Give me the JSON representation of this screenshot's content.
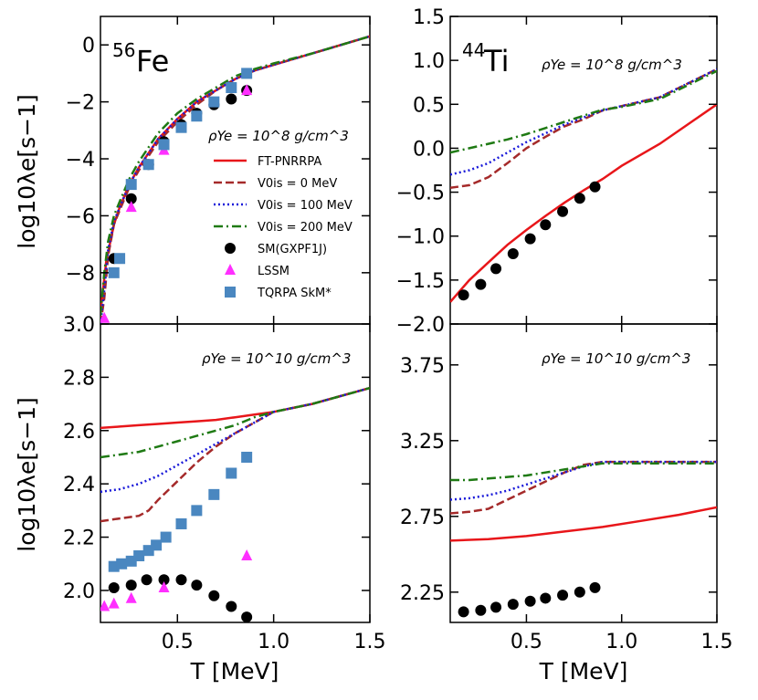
{
  "axes": {
    "shared_ylabel": "log10λe[s−1]",
    "shared_xlabel": "T [MeV]",
    "x_ticks": [
      "0.5",
      "1.0",
      "1.5"
    ]
  },
  "legend": {
    "rho_label": "ρYe = 10^8 g/cm^3",
    "entries": [
      {
        "label": "FT-PNRRPA",
        "style": "solid",
        "color": "#e8161a"
      },
      {
        "label": "V0is = 0 MeV",
        "style": "dashed",
        "color": "#a52a2a"
      },
      {
        "label": "V0is = 100 MeV",
        "style": "dotted",
        "color": "#1a1ad9"
      },
      {
        "label": "V0is = 200 MeV",
        "style": "dashdot",
        "color": "#1f7a14"
      },
      {
        "label": "SM(GXPF1J)",
        "style": "circle",
        "color": "#000000"
      },
      {
        "label": "LSSM",
        "style": "triangle",
        "color": "#ff2fff"
      },
      {
        "label": "TQRPA SkM*",
        "style": "square",
        "color": "#4a87c0"
      }
    ]
  },
  "chart_data": [
    {
      "panel": "top-left",
      "type": "line",
      "nucleus_mass": "56",
      "nucleus": "Fe",
      "density_label": "",
      "xlim": [
        0.1,
        1.5
      ],
      "ylim": [
        -9.8,
        1.0
      ],
      "y_ticks": [
        "0",
        "−2",
        "−4",
        "−6",
        "−8"
      ],
      "y_tick_values": [
        0,
        -2,
        -4,
        -6,
        -8
      ],
      "series": [
        {
          "name": "FT-PNRRPA",
          "style": "solid",
          "color": "#e8161a",
          "x": [
            0.1,
            0.13,
            0.17,
            0.2,
            0.25,
            0.3,
            0.4,
            0.5,
            0.6,
            0.7,
            0.8,
            0.9,
            1.0,
            1.2,
            1.5
          ],
          "y": [
            -9.4,
            -7.6,
            -6.3,
            -5.7,
            -4.9,
            -4.3,
            -3.3,
            -2.6,
            -2.0,
            -1.6,
            -1.2,
            -0.9,
            -0.7,
            -0.3,
            0.3
          ]
        },
        {
          "name": "V0is = 0 MeV",
          "style": "dashed",
          "color": "#a52a2a",
          "x": [
            0.1,
            0.12,
            0.14,
            0.17,
            0.2,
            0.25,
            0.3,
            0.4,
            0.5,
            0.6,
            0.7,
            0.8,
            0.9,
            1.0,
            1.2,
            1.5
          ],
          "y": [
            -9.8,
            -8.9,
            -7.4,
            -6.3,
            -5.8,
            -5.0,
            -4.4,
            -3.4,
            -2.7,
            -2.1,
            -1.6,
            -1.2,
            -0.9,
            -0.7,
            -0.3,
            0.3
          ]
        },
        {
          "name": "V0is = 100 MeV",
          "style": "dotted",
          "color": "#1a1ad9",
          "x": [
            0.1,
            0.12,
            0.14,
            0.17,
            0.2,
            0.25,
            0.3,
            0.4,
            0.5,
            0.6,
            0.7,
            0.8,
            0.9,
            1.0,
            1.2,
            1.5
          ],
          "y": [
            -9.8,
            -8.6,
            -7.2,
            -6.2,
            -5.7,
            -4.9,
            -4.3,
            -3.3,
            -2.6,
            -2.0,
            -1.6,
            -1.2,
            -0.9,
            -0.7,
            -0.3,
            0.3
          ]
        },
        {
          "name": "V0is = 200 MeV",
          "style": "dashdot",
          "color": "#1f7a14",
          "x": [
            0.1,
            0.12,
            0.14,
            0.17,
            0.2,
            0.25,
            0.3,
            0.4,
            0.5,
            0.6,
            0.7,
            0.8,
            0.9,
            1.0,
            1.2,
            1.5
          ],
          "y": [
            -9.5,
            -8.0,
            -6.9,
            -6.0,
            -5.5,
            -4.7,
            -4.1,
            -3.1,
            -2.4,
            -1.9,
            -1.5,
            -1.1,
            -0.85,
            -0.65,
            -0.3,
            0.3
          ]
        },
        {
          "name": "SM(GXPF1J)",
          "style": "circle",
          "color": "#000000",
          "x": [
            0.17,
            0.26,
            0.35,
            0.43,
            0.52,
            0.6,
            0.69,
            0.78,
            0.86
          ],
          "y": [
            -7.5,
            -5.4,
            -4.2,
            -3.4,
            -2.8,
            -2.4,
            -2.1,
            -1.9,
            -1.6
          ]
        },
        {
          "name": "LSSM",
          "style": "triangle",
          "color": "#ff2fff",
          "x": [
            0.12,
            0.26,
            0.43,
            0.86
          ],
          "y": [
            -9.6,
            -5.7,
            -3.7,
            -1.6
          ]
        },
        {
          "name": "TQRPA SkM*",
          "style": "square",
          "color": "#4a87c0",
          "x": [
            0.17,
            0.2,
            0.26,
            0.35,
            0.43,
            0.52,
            0.6,
            0.69,
            0.78,
            0.86
          ],
          "y": [
            -8.0,
            -7.5,
            -4.9,
            -4.2,
            -3.5,
            -2.9,
            -2.5,
            -2.0,
            -1.5,
            -1.0
          ]
        }
      ]
    },
    {
      "panel": "top-right",
      "type": "line",
      "nucleus_mass": "44",
      "nucleus": "Ti",
      "density_label": "ρYe = 10^8 g/cm^3",
      "xlim": [
        0.1,
        1.5
      ],
      "ylim": [
        -2.0,
        1.5
      ],
      "y_ticks": [
        "1.5",
        "1.0",
        "0.5",
        "0.0",
        "−0.5",
        "−1.0",
        "−1.5",
        "−2.0"
      ],
      "y_tick_values": [
        1.5,
        1.0,
        0.5,
        0.0,
        -0.5,
        -1.0,
        -1.5,
        -2.0
      ],
      "series": [
        {
          "name": "FT-PNRRPA",
          "style": "solid",
          "color": "#e8161a",
          "x": [
            0.1,
            0.2,
            0.3,
            0.4,
            0.5,
            0.6,
            0.7,
            0.8,
            0.9,
            1.0,
            1.2,
            1.5
          ],
          "y": [
            -1.75,
            -1.5,
            -1.3,
            -1.1,
            -0.93,
            -0.77,
            -0.62,
            -0.48,
            -0.35,
            -0.2,
            0.05,
            0.5
          ]
        },
        {
          "name": "V0is = 0 MeV",
          "style": "dashed",
          "color": "#a52a2a",
          "x": [
            0.1,
            0.2,
            0.3,
            0.4,
            0.5,
            0.6,
            0.7,
            0.8,
            0.9,
            1.0,
            1.2,
            1.5
          ],
          "y": [
            -0.45,
            -0.42,
            -0.33,
            -0.17,
            0.0,
            0.13,
            0.25,
            0.33,
            0.43,
            0.48,
            0.58,
            0.9
          ]
        },
        {
          "name": "V0is = 100 MeV",
          "style": "dotted",
          "color": "#1a1ad9",
          "x": [
            0.1,
            0.2,
            0.3,
            0.4,
            0.5,
            0.6,
            0.7,
            0.8,
            0.9,
            1.0,
            1.2,
            1.5
          ],
          "y": [
            -0.3,
            -0.25,
            -0.17,
            -0.05,
            0.07,
            0.17,
            0.27,
            0.35,
            0.43,
            0.48,
            0.58,
            0.9
          ]
        },
        {
          "name": "V0is = 200 MeV",
          "style": "dashdot",
          "color": "#1f7a14",
          "x": [
            0.1,
            0.2,
            0.3,
            0.4,
            0.5,
            0.6,
            0.7,
            0.8,
            0.9,
            1.0,
            1.2,
            1.5
          ],
          "y": [
            -0.05,
            0.0,
            0.05,
            0.1,
            0.16,
            0.23,
            0.3,
            0.37,
            0.44,
            0.47,
            0.56,
            0.88
          ]
        },
        {
          "name": "SM(GXPF1J)",
          "style": "circle",
          "color": "#000000",
          "x": [
            0.17,
            0.26,
            0.34,
            0.43,
            0.52,
            0.6,
            0.69,
            0.78,
            0.86
          ],
          "y": [
            -1.67,
            -1.55,
            -1.37,
            -1.2,
            -1.03,
            -0.87,
            -0.72,
            -0.57,
            -0.44
          ]
        }
      ]
    },
    {
      "panel": "bottom-left",
      "type": "line",
      "nucleus_mass": "",
      "nucleus": "",
      "density_label": "ρYe = 10^10 g/cm^3",
      "xlim": [
        0.1,
        1.5
      ],
      "ylim": [
        1.88,
        3.0
      ],
      "y_ticks": [
        "3.0",
        "2.8",
        "2.6",
        "2.4",
        "2.2",
        "2.0"
      ],
      "y_tick_values": [
        3.0,
        2.8,
        2.6,
        2.4,
        2.2,
        2.0
      ],
      "series": [
        {
          "name": "FT-PNRRPA",
          "style": "solid",
          "color": "#e8161a",
          "x": [
            0.1,
            0.2,
            0.3,
            0.4,
            0.5,
            0.6,
            0.7,
            0.8,
            0.9,
            1.0,
            1.2,
            1.5
          ],
          "y": [
            2.61,
            2.615,
            2.62,
            2.625,
            2.63,
            2.635,
            2.64,
            2.65,
            2.66,
            2.67,
            2.7,
            2.76
          ]
        },
        {
          "name": "V0is = 0 MeV",
          "style": "dashed",
          "color": "#a52a2a",
          "x": [
            0.1,
            0.2,
            0.3,
            0.35,
            0.4,
            0.5,
            0.6,
            0.7,
            0.8,
            0.9,
            1.0,
            1.2,
            1.5
          ],
          "y": [
            2.26,
            2.27,
            2.28,
            2.3,
            2.34,
            2.41,
            2.48,
            2.54,
            2.59,
            2.63,
            2.67,
            2.7,
            2.76
          ]
        },
        {
          "name": "V0is = 100 MeV",
          "style": "dotted",
          "color": "#1a1ad9",
          "x": [
            0.1,
            0.2,
            0.3,
            0.4,
            0.5,
            0.6,
            0.7,
            0.8,
            0.9,
            1.0,
            1.2,
            1.5
          ],
          "y": [
            2.37,
            2.38,
            2.4,
            2.43,
            2.47,
            2.51,
            2.55,
            2.59,
            2.63,
            2.67,
            2.7,
            2.76
          ]
        },
        {
          "name": "V0is = 200 MeV",
          "style": "dashdot",
          "color": "#1f7a14",
          "x": [
            0.1,
            0.2,
            0.3,
            0.4,
            0.5,
            0.6,
            0.7,
            0.8,
            0.9,
            1.0,
            1.2,
            1.5
          ],
          "y": [
            2.5,
            2.51,
            2.52,
            2.54,
            2.56,
            2.58,
            2.6,
            2.62,
            2.65,
            2.67,
            2.7,
            2.76
          ]
        },
        {
          "name": "SM(GXPF1J)",
          "style": "circle",
          "color": "#000000",
          "x": [
            0.17,
            0.26,
            0.34,
            0.43,
            0.52,
            0.6,
            0.69,
            0.78,
            0.86
          ],
          "y": [
            2.01,
            2.02,
            2.04,
            2.04,
            2.04,
            2.02,
            1.98,
            1.94,
            1.9
          ]
        },
        {
          "name": "LSSM",
          "style": "triangle",
          "color": "#ff2fff",
          "x": [
            0.12,
            0.17,
            0.26,
            0.43,
            0.86
          ],
          "y": [
            1.94,
            1.95,
            1.97,
            2.01,
            2.13
          ]
        },
        {
          "name": "TQRPA SkM*",
          "style": "square",
          "color": "#4a87c0",
          "x": [
            0.17,
            0.21,
            0.26,
            0.3,
            0.35,
            0.39,
            0.44,
            0.52,
            0.6,
            0.69,
            0.78,
            0.86
          ],
          "y": [
            2.09,
            2.1,
            2.11,
            2.13,
            2.15,
            2.17,
            2.2,
            2.25,
            2.3,
            2.36,
            2.44,
            2.5
          ]
        }
      ]
    },
    {
      "panel": "bottom-right",
      "type": "line",
      "nucleus_mass": "",
      "nucleus": "",
      "density_label": "ρYe = 10^10 g/cm^3",
      "xlim": [
        0.1,
        1.5
      ],
      "ylim": [
        2.05,
        4.02
      ],
      "y_ticks": [
        "3.75",
        "3.25",
        "2.75",
        "2.25"
      ],
      "y_tick_values": [
        3.75,
        3.25,
        2.75,
        2.25
      ],
      "series": [
        {
          "name": "FT-PNRRPA",
          "style": "solid",
          "color": "#e8161a",
          "x": [
            0.1,
            0.3,
            0.5,
            0.7,
            0.9,
            1.1,
            1.3,
            1.5
          ],
          "y": [
            2.59,
            2.6,
            2.62,
            2.65,
            2.68,
            2.72,
            2.76,
            2.81
          ]
        },
        {
          "name": "V0is = 0 MeV",
          "style": "dashed",
          "color": "#a52a2a",
          "x": [
            0.1,
            0.2,
            0.3,
            0.4,
            0.5,
            0.6,
            0.7,
            0.8,
            0.9,
            1.0,
            1.2,
            1.5
          ],
          "y": [
            2.77,
            2.78,
            2.8,
            2.86,
            2.92,
            2.98,
            3.04,
            3.09,
            3.11,
            3.11,
            3.11,
            3.11
          ]
        },
        {
          "name": "V0is = 100 MeV",
          "style": "dotted",
          "color": "#1a1ad9",
          "x": [
            0.1,
            0.2,
            0.3,
            0.4,
            0.5,
            0.6,
            0.7,
            0.8,
            0.9,
            1.0,
            1.2,
            1.5
          ],
          "y": [
            2.86,
            2.87,
            2.89,
            2.92,
            2.96,
            3.0,
            3.04,
            3.08,
            3.11,
            3.11,
            3.11,
            3.11
          ]
        },
        {
          "name": "V0is = 200 MeV",
          "style": "dashdot",
          "color": "#1f7a14",
          "x": [
            0.1,
            0.2,
            0.3,
            0.4,
            0.5,
            0.6,
            0.7,
            0.8,
            0.9,
            1.0,
            1.2,
            1.5
          ],
          "y": [
            2.99,
            2.99,
            3.0,
            3.01,
            3.02,
            3.04,
            3.06,
            3.08,
            3.1,
            3.1,
            3.1,
            3.1
          ]
        },
        {
          "name": "SM(GXPF1J)",
          "style": "circle",
          "color": "#000000",
          "x": [
            0.17,
            0.26,
            0.34,
            0.43,
            0.52,
            0.6,
            0.69,
            0.78,
            0.86
          ],
          "y": [
            2.12,
            2.13,
            2.15,
            2.17,
            2.19,
            2.21,
            2.23,
            2.25,
            2.28
          ]
        }
      ]
    }
  ]
}
